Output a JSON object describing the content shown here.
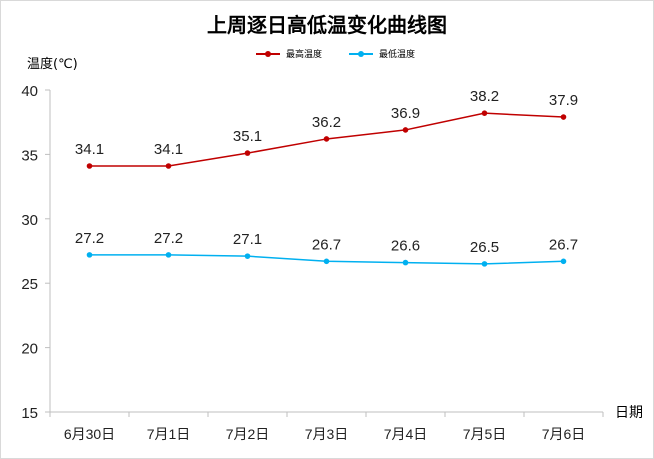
{
  "chart_data": {
    "type": "line",
    "title": "上周逐日高低温变化曲线图",
    "ylabel": "温度(℃)",
    "xlabel": "日期",
    "categories": [
      "6月30日",
      "7月1日",
      "7月2日",
      "7月3日",
      "7月4日",
      "7月5日",
      "7月6日"
    ],
    "ylim": [
      15,
      40
    ],
    "yticks": [
      15,
      20,
      25,
      30,
      35,
      40
    ],
    "grid": false,
    "legend_position": "top-center",
    "series": [
      {
        "name": "最高温度",
        "color": "#c00000",
        "values": [
          34.1,
          34.1,
          35.1,
          36.2,
          36.9,
          38.2,
          37.9
        ]
      },
      {
        "name": "最低温度",
        "color": "#00b0f0",
        "values": [
          27.2,
          27.2,
          27.1,
          26.7,
          26.6,
          26.5,
          26.7
        ]
      }
    ]
  }
}
